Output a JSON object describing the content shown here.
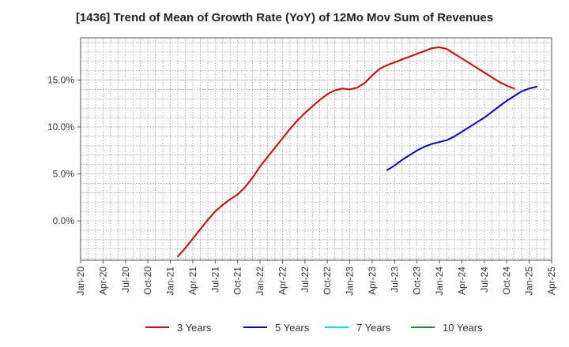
{
  "chart_data": {
    "type": "line",
    "title": "[1436]  Trend of Mean of Growth Rate (YoY) of 12Mo Mov Sum of Revenues",
    "xlabel": "",
    "ylabel": "",
    "ylim": [
      -4.2,
      19.5
    ],
    "y_ticks": [
      0,
      5,
      10,
      15
    ],
    "y_tick_labels": [
      "0.0%",
      "5.0%",
      "10.0%",
      "15.0%"
    ],
    "x_ticks": [
      "Jan-20",
      "Apr-20",
      "Jul-20",
      "Oct-20",
      "Jan-21",
      "Apr-21",
      "Jul-21",
      "Oct-21",
      "Jan-22",
      "Apr-22",
      "Jul-22",
      "Oct-22",
      "Jan-23",
      "Apr-23",
      "Jul-23",
      "Oct-23",
      "Jan-24",
      "Apr-24",
      "Jul-24",
      "Oct-24",
      "Jan-25",
      "Apr-25"
    ],
    "grid": true,
    "legend_position": "bottom",
    "series": [
      {
        "name": "3 Years",
        "color": "#dd0000",
        "start_index": 13,
        "values": [
          -3.8,
          -2.9,
          -1.9,
          -0.9,
          0.1,
          1.0,
          1.7,
          2.3,
          2.8,
          3.6,
          4.6,
          5.8,
          6.8,
          7.8,
          8.8,
          9.8,
          10.7,
          11.5,
          12.2,
          12.9,
          13.5,
          13.9,
          14.1,
          14.0,
          14.2,
          14.7,
          15.5,
          16.2,
          16.6,
          16.9,
          17.2,
          17.5,
          17.8,
          18.1,
          18.4,
          18.5,
          18.3,
          17.8,
          17.3,
          16.8,
          16.3,
          15.8,
          15.3,
          14.8,
          14.4,
          14.1
        ]
      },
      {
        "name": "5 Years",
        "color": "#0000cc",
        "start_index": 41,
        "values": [
          5.4,
          5.9,
          6.5,
          7.0,
          7.5,
          7.9,
          8.2,
          8.4,
          8.6,
          9.0,
          9.5,
          10.0,
          10.5,
          11.0,
          11.6,
          12.2,
          12.8,
          13.3,
          13.8,
          14.1,
          14.3
        ]
      },
      {
        "name": "7 Years",
        "color": "#00e5ee",
        "start_index": 0,
        "values": []
      },
      {
        "name": "10 Years",
        "color": "#228b22",
        "start_index": 0,
        "values": []
      }
    ]
  }
}
